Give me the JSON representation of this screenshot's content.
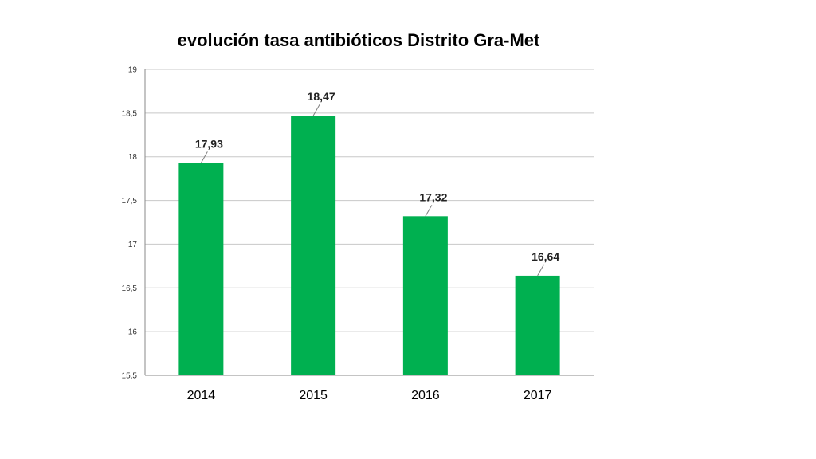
{
  "chart_data": {
    "type": "bar",
    "title": "evolución tasa antibióticos Distrito Gra-Met",
    "xlabel": "",
    "ylabel": "",
    "categories": [
      "2014",
      "2015",
      "2016",
      "2017"
    ],
    "values": [
      17.93,
      18.47,
      17.32,
      16.64
    ],
    "value_labels": [
      "17,93",
      "18,47",
      "17,32",
      "16,64"
    ],
    "ylim": [
      15.5,
      19
    ],
    "yticks": [
      15.5,
      16,
      16.5,
      17,
      17.5,
      18,
      18.5,
      19
    ],
    "ytick_labels": [
      "15,5",
      "16",
      "16,5",
      "17",
      "17,5",
      "18",
      "18,5",
      "19"
    ],
    "grid": true,
    "legend": "none",
    "bar_color": "#00b050",
    "grid_color": "#c8c8c8",
    "axis_color": "#888888"
  }
}
